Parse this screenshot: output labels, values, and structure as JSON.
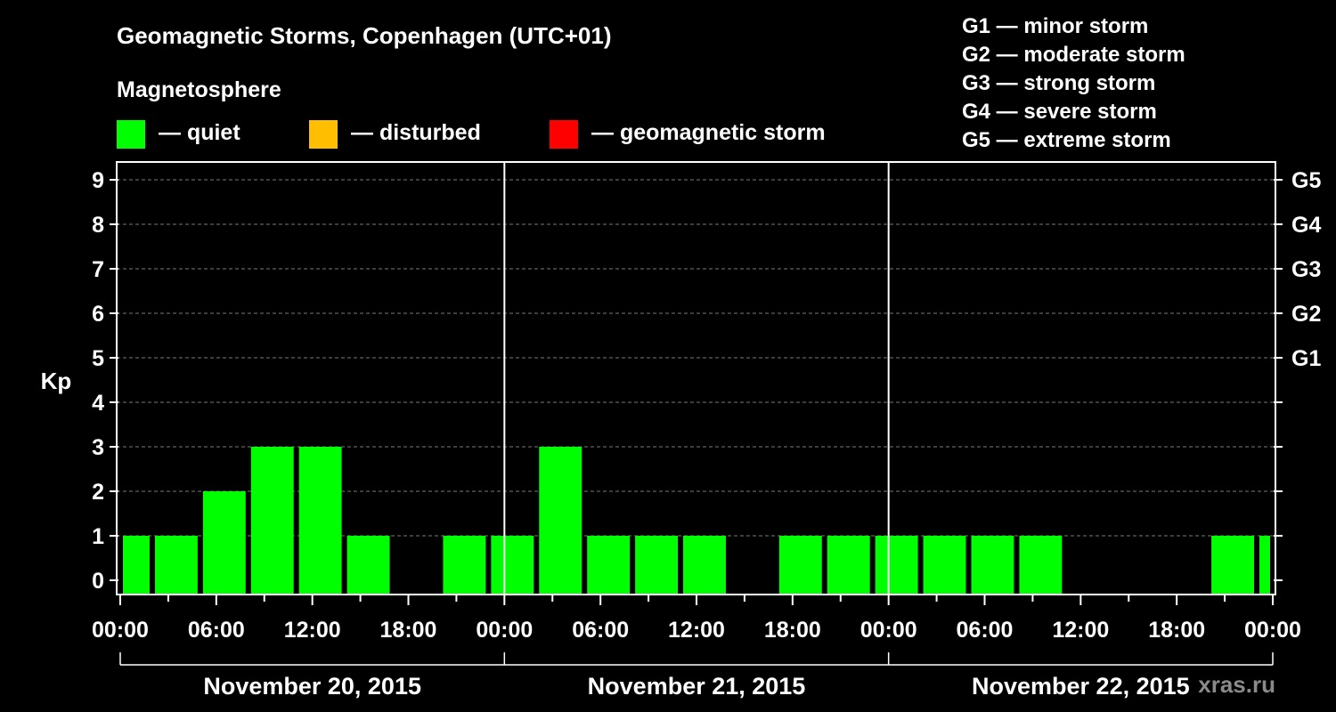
{
  "chart_data": {
    "type": "bar",
    "title": "Geomagnetic Storms, Copenhagen (UTC+01)",
    "legend_heading": "Magnetosphere",
    "legend": [
      {
        "label": "— quiet",
        "color": "#00ff00"
      },
      {
        "label": "— disturbed",
        "color": "#ffbf00"
      },
      {
        "label": "— geomagnetic storm",
        "color": "#ff0000"
      }
    ],
    "storm_scale": [
      "G1 — minor storm",
      "G2 — moderate storm",
      "G3 — strong storm",
      "G4 — severe storm",
      "G5 — extreme storm"
    ],
    "ylabel": "Kp",
    "ylim": [
      0,
      9
    ],
    "yticks": [
      "0",
      "1",
      "2",
      "3",
      "4",
      "5",
      "6",
      "7",
      "8",
      "9"
    ],
    "right_labels": [
      {
        "kp": 5,
        "label": "G1"
      },
      {
        "kp": 6,
        "label": "G2"
      },
      {
        "kp": 7,
        "label": "G3"
      },
      {
        "kp": 8,
        "label": "G4"
      },
      {
        "kp": 9,
        "label": "G5"
      }
    ],
    "x_tick_labels": [
      "00:00",
      "06:00",
      "12:00",
      "18:00",
      "00:00",
      "06:00",
      "12:00",
      "18:00",
      "00:00",
      "06:00",
      "12:00",
      "18:00",
      "00:00"
    ],
    "days": [
      "November 20, 2015",
      "November 21, 2015",
      "November 22, 2015"
    ],
    "x_unit": "hours from November 20, 2015 00:00 (UTC+01)",
    "bars": [
      {
        "start": 0,
        "end": 2,
        "kp": 1
      },
      {
        "start": 2,
        "end": 5,
        "kp": 1
      },
      {
        "start": 5,
        "end": 8,
        "kp": 2
      },
      {
        "start": 8,
        "end": 11,
        "kp": 3
      },
      {
        "start": 11,
        "end": 14,
        "kp": 3
      },
      {
        "start": 14,
        "end": 17,
        "kp": 1
      },
      {
        "start": 20,
        "end": 23,
        "kp": 1
      },
      {
        "start": 23,
        "end": 26,
        "kp": 1
      },
      {
        "start": 26,
        "end": 29,
        "kp": 3
      },
      {
        "start": 29,
        "end": 32,
        "kp": 1
      },
      {
        "start": 32,
        "end": 35,
        "kp": 1
      },
      {
        "start": 35,
        "end": 38,
        "kp": 1
      },
      {
        "start": 41,
        "end": 44,
        "kp": 1
      },
      {
        "start": 44,
        "end": 47,
        "kp": 1
      },
      {
        "start": 47,
        "end": 50,
        "kp": 1
      },
      {
        "start": 50,
        "end": 53,
        "kp": 1
      },
      {
        "start": 53,
        "end": 56,
        "kp": 1
      },
      {
        "start": 56,
        "end": 59,
        "kp": 1
      },
      {
        "start": 68,
        "end": 71,
        "kp": 1
      },
      {
        "start": 71,
        "end": 72,
        "kp": 1
      }
    ],
    "grid": true
  },
  "watermark": "xras.ru"
}
